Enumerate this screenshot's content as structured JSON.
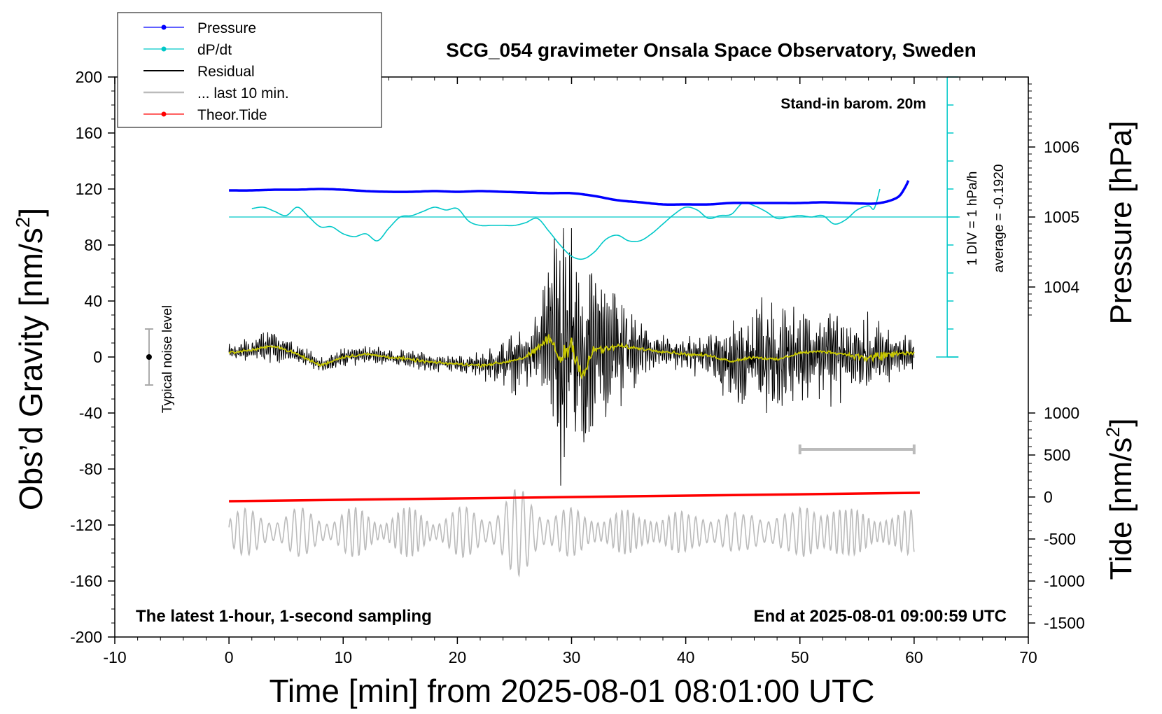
{
  "chart_data": {
    "type": "line",
    "title": "SCG_054 gravimeter Onsala Space Observatory, Sweden",
    "xlabel": "Time [min] from 2025-08-01 08:01:00 UTC",
    "ylabel_main": "Obs’d Gravity [nm/s",
    "ylabel_main_sup": "2",
    "ylabel_main_end": "]",
    "ylabel_pressure": "Pressure [hPa]",
    "ylabel_tide": "Tide [nm/s",
    "ylabel_tide_sup": "2",
    "ylabel_tide_end": "]",
    "xlim": [
      -10,
      70
    ],
    "ylim": [
      -200,
      200
    ],
    "x_ticks": [
      "-10",
      "0",
      "10",
      "20",
      "30",
      "40",
      "50",
      "60",
      "70"
    ],
    "y_ticks": [
      "200",
      "160",
      "120",
      "80",
      "40",
      "0",
      "-40",
      "-80",
      "-120",
      "-160",
      "-200"
    ],
    "pressure_ticks": [
      "1006",
      "1005",
      "1004"
    ],
    "pressure_tick_values": [
      1006,
      1005,
      1004
    ],
    "pressure_axis": {
      "ref_value": 1005,
      "ref_gravity": 100,
      "gravity_per_hPa": 50
    },
    "tide_ticks": [
      "1000",
      "500",
      "0",
      "-500",
      "-1000",
      "-1500"
    ],
    "tide_tick_values": [
      1000,
      500,
      0,
      -500,
      -1000,
      -1500
    ],
    "tide_axis": {
      "ref_value": 0,
      "ref_gravity": -100,
      "gravity_per_unit": 0.06
    },
    "legend": {
      "placement": "top-left",
      "entries": [
        {
          "label": "Pressure",
          "color": "#0000ff",
          "marker": true
        },
        {
          "label": "dP/dt",
          "color": "#00c8c8",
          "marker": true
        },
        {
          "label": "Residual",
          "color": "#000000",
          "marker": false
        },
        {
          "label": "... last 10 min.",
          "color": "#bbbbbb",
          "marker": false
        },
        {
          "label": "Theor.Tide",
          "color": "#ff0000",
          "marker": true
        }
      ]
    },
    "annotations": {
      "standin": "Stand-in barom. 20m",
      "div": "1 DIV = 1 hPa/h",
      "average": "average = -0.1920",
      "noise": "Typical noise level",
      "latest": "The latest 1-hour, 1-second sampling",
      "end": "End at 2025-08-01 09:00:59 UTC"
    },
    "series": [
      {
        "name": "Pressure",
        "color": "#0000ff",
        "x": [
          0,
          2,
          4,
          6,
          8,
          10,
          12,
          14,
          16,
          18,
          20,
          22,
          24,
          26,
          28,
          30,
          32,
          34,
          36,
          38,
          40,
          42,
          44,
          46,
          48,
          50,
          52,
          54,
          56,
          57,
          58,
          58.7,
          59.2,
          59.5
        ],
        "values": [
          119,
          119,
          119.5,
          119.5,
          120,
          119.5,
          118.5,
          118,
          118,
          118.5,
          118,
          118.5,
          118,
          117.5,
          117,
          117,
          115,
          112,
          110.5,
          109,
          109,
          109,
          110,
          110,
          110,
          110,
          110.5,
          110,
          109.5,
          110,
          112,
          115,
          121,
          126
        ]
      },
      {
        "name": "dP/dt",
        "color": "#00c8c8",
        "x": [
          2,
          3,
          4,
          5,
          6,
          7,
          8,
          9,
          10,
          11,
          12,
          13,
          14,
          15,
          16,
          17,
          18,
          19,
          20,
          21,
          22,
          23,
          24,
          25,
          26,
          27,
          28,
          29,
          30,
          31,
          32,
          33,
          34,
          35,
          36,
          37,
          38,
          39,
          40,
          41,
          42,
          43,
          44,
          45,
          46,
          47,
          48,
          49,
          50,
          51,
          52,
          53,
          54,
          55,
          56,
          56.5,
          57
        ],
        "values": [
          106,
          107,
          104,
          101,
          107,
          100,
          93,
          93,
          88,
          86,
          88,
          83,
          92,
          100,
          101,
          104,
          107,
          105,
          106,
          97,
          94,
          94,
          94,
          94,
          96,
          99,
          90,
          80,
          72,
          70,
          75,
          84,
          87,
          83,
          83,
          88,
          95,
          102,
          107,
          105,
          99,
          101,
          102,
          110,
          108,
          104,
          99,
          100,
          101,
          100,
          101,
          95,
          98,
          105,
          108,
          106,
          120
        ]
      },
      {
        "name": "Residual",
        "color": "#000000",
        "x": [
          0,
          2,
          4,
          6,
          8,
          10,
          12,
          14,
          16,
          18,
          20,
          22,
          24,
          26,
          27,
          28,
          29,
          30,
          31,
          32,
          33,
          34,
          36,
          38,
          40,
          42,
          44,
          46,
          48,
          50,
          52,
          54,
          56,
          58,
          60
        ],
        "values": [
          3,
          5,
          8,
          2,
          -6,
          0,
          2,
          0,
          -2,
          -4,
          -5,
          -6,
          -4,
          0,
          5,
          14,
          -2,
          10,
          -14,
          6,
          5,
          8,
          6,
          4,
          2,
          1,
          -3,
          0,
          -2,
          3,
          4,
          2,
          -1,
          2,
          3
        ]
      },
      {
        "name": "... last 10 min.",
        "color": "#bbbbbb",
        "x_range": [
          0,
          60
        ],
        "scale_bar": [
          50,
          60
        ]
      },
      {
        "name": "Theor.Tide",
        "color": "#ff0000",
        "x": [
          0,
          60.5
        ],
        "values": [
          -103,
          -97
        ]
      }
    ],
    "noise_bar": {
      "x": -7,
      "range": [
        -20,
        20
      ]
    }
  }
}
